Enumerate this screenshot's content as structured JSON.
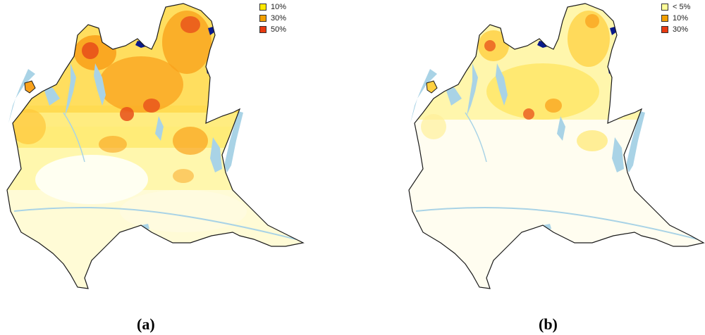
{
  "colors": {
    "water": "#a9d3e6",
    "outline": "#1a1a1a",
    "base": "#fffbd6",
    "cold": "#fff6a8",
    "warm": "#ffd84a",
    "hot": "#f9a21c",
    "very_hot": "#e8501a",
    "lake_dark": "#0a1a8a"
  },
  "maps": [
    {
      "label": "(a)",
      "legend": [
        {
          "text": "10%",
          "color": "#ffe800"
        },
        {
          "text": "30%",
          "color": "#f3a000"
        },
        {
          "text": "50%",
          "color": "#e83a10"
        }
      ]
    },
    {
      "label": "(b)",
      "legend": [
        {
          "text": "< 5%",
          "color": "#ffff99"
        },
        {
          "text": "10%",
          "color": "#f3a000"
        },
        {
          "text": "30%",
          "color": "#e83a10"
        }
      ]
    }
  ]
}
